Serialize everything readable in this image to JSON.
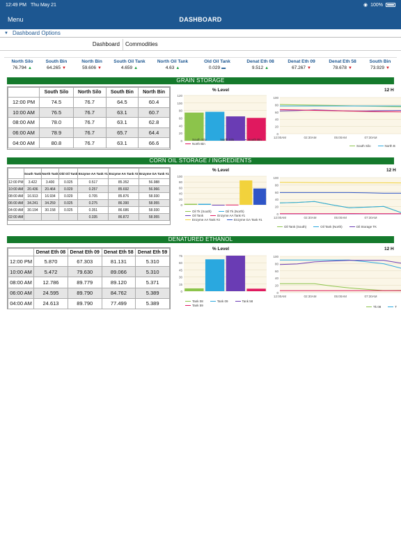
{
  "status_bar": {
    "time": "12:49 PM",
    "date": "Thu May 21",
    "battery": "100%"
  },
  "nav": {
    "menu_label": "Menu",
    "title": "DASHBOARD"
  },
  "dashboard_options_label": "Dashboard Options",
  "tabs": [
    {
      "label": "Dashboard"
    },
    {
      "label": "Commodities"
    }
  ],
  "tickers": [
    {
      "name": "North Silo",
      "value": "76.794",
      "trend": "up"
    },
    {
      "name": "South Bin",
      "value": "64.265",
      "trend": "down"
    },
    {
      "name": "North Bin",
      "value": "59.606",
      "trend": "down"
    },
    {
      "name": "South Oil Tank",
      "value": "4.659",
      "trend": "up"
    },
    {
      "name": "North Oil Tank",
      "value": "4.63",
      "trend": "up"
    },
    {
      "name": "Old Oil Tank",
      "value": "0.029",
      "trend": "flat"
    },
    {
      "name": "Denat Eth 08",
      "value": "9.512",
      "trend": "up"
    },
    {
      "name": "Denat Eth 09",
      "value": "67.267",
      "trend": "down"
    },
    {
      "name": "Denat Eth 58",
      "value": "78.678",
      "trend": "down"
    },
    {
      "name": "South Bin",
      "value": "73.929",
      "trend": "down"
    }
  ],
  "colors": {
    "nav": "#1d5791",
    "section": "#157a2c",
    "up": "#15a03b",
    "down": "#d2151f"
  },
  "sections": [
    {
      "title": "GRAIN STORAGE",
      "table": {
        "headers": [
          "",
          "South Silo",
          "North Silo",
          "South Bin",
          "North Bin"
        ],
        "rows": [
          [
            "12:00 PM",
            "74.5",
            "76.7",
            "64.5",
            "60.4"
          ],
          [
            "10:00 AM",
            "76.5",
            "76.7",
            "63.1",
            "60.7"
          ],
          [
            "08:00 AM",
            "78.0",
            "76.7",
            "63.1",
            "62.8"
          ],
          [
            "06:00 AM",
            "78.9",
            "76.7",
            "65.7",
            "64.4"
          ],
          [
            "04:00 AM",
            "80.8",
            "76.7",
            "63.1",
            "66.6"
          ]
        ]
      },
      "bar_chart": {
        "title": "% Level",
        "y_ticks": [
          "0",
          "20",
          "40",
          "60",
          "80",
          "100",
          "120"
        ],
        "ymax": 120,
        "bars": [
          {
            "name": "South Silo",
            "value": 74.5,
            "color": "#8cc44b"
          },
          {
            "name": "North Silo",
            "value": 76.7,
            "color": "#2aa8df"
          },
          {
            "name": "South Bin",
            "value": 64.5,
            "color": "#6a3cb4"
          },
          {
            "name": "North Bin",
            "value": 60.4,
            "color": "#e0195f"
          }
        ]
      },
      "line_chart": {
        "title": "12 H",
        "y_ticks": [
          "0",
          "20",
          "40",
          "60",
          "80",
          "100"
        ],
        "ymax": 100,
        "x_ticks": [
          "12:00AM",
          "02:30AM",
          "05:00AM",
          "07:30AM"
        ],
        "series": [
          {
            "name": "South Silo",
            "color": "#8cc44b",
            "values": [
              80.8,
              79.6,
              78.9,
              78.0,
              77.2,
              76.5,
              75.5,
              74.5
            ]
          },
          {
            "name": "North B",
            "color": "#2aa8df",
            "values": [
              76.7,
              76.7,
              76.7,
              76.7,
              76.7,
              76.7,
              76.7,
              76.7
            ]
          },
          {
            "name": "",
            "color": "#6a3cb4",
            "values": [
              63.1,
              64.0,
              65.7,
              64.4,
              63.1,
              63.1,
              63.8,
              64.5
            ]
          },
          {
            "name": "",
            "color": "#e0195f",
            "values": [
              66.6,
              65.5,
              64.4,
              63.6,
              62.8,
              61.7,
              60.7,
              60.4
            ]
          }
        ]
      }
    },
    {
      "title": "CORN OIL STORAGE / INGREDIENTS",
      "table": {
        "headers": [
          "",
          "South Tank",
          "North Tank",
          "Old Oil Tank",
          "Enzyme AA Tank #1",
          "Enzyme AA Tank #2",
          "Enzyme GA Tank #1"
        ],
        "rows": [
          [
            "12:00 PM",
            "3.422",
            "3.400",
            "0.025",
            "0.517",
            "85.352",
            "56.988"
          ],
          [
            "10:00 AM",
            "20.436",
            "20.464",
            "0.029",
            "0.257",
            "85.692",
            "56.966"
          ],
          [
            "08:00 AM",
            "16.913",
            "16.934",
            "0.029",
            "0.705",
            "85.876",
            "58.930"
          ],
          [
            "06:00 AM",
            "34.241",
            "34.259",
            "0.025",
            "0.275",
            "86.390",
            "58.955"
          ],
          [
            "04:00 AM",
            "30.194",
            "30.158",
            "0.025",
            "0.351",
            "86.686",
            "58.930"
          ],
          [
            "02:00 AM",
            "",
            "",
            "",
            "0.335",
            "86.872",
            "58.955"
          ]
        ]
      },
      "bar_chart": {
        "title": "% Level",
        "y_ticks": [
          "0",
          "20",
          "40",
          "60",
          "80",
          "100"
        ],
        "ymax": 100,
        "bars": [
          {
            "name": "Oil Tk (South)",
            "value": 3.4,
            "color": "#8cc44b"
          },
          {
            "name": "Oil Tk (North)",
            "value": 3.4,
            "color": "#2aa8df"
          },
          {
            "name": "Oil Tank",
            "value": 0.03,
            "color": "#6a3cb4"
          },
          {
            "name": "Enzyme AA Tank #1",
            "value": 0.5,
            "color": "#e0195f"
          },
          {
            "name": "Enzyme AA Tank #2",
            "value": 85.4,
            "color": "#f2d23c"
          },
          {
            "name": "Enzyme GA Tank #1",
            "value": 57.0,
            "color": "#2f55c7"
          }
        ],
        "legend": [
          "Oil Tk (South)",
          "Oil Tk (North)",
          "Oil Tank",
          "Enzyme AA Tank #1",
          "Enzyme AA Tank #2",
          "Enzyme GA Tank #1"
        ]
      },
      "line_chart": {
        "title": "12 H",
        "y_ticks": [
          "0",
          "20",
          "40",
          "60",
          "80",
          "100"
        ],
        "ymax": 100,
        "x_ticks": [
          "12:00AM",
          "02:30AM",
          "05:00AM",
          "07:30AM"
        ],
        "series": [
          {
            "name": "Oil Tank (South)",
            "color": "#8cc44b",
            "values": [
              30.2,
              31.5,
              34.2,
              25.0,
              16.9,
              18.5,
              20.4,
              3.4
            ]
          },
          {
            "name": "Oil Tank (North)",
            "color": "#2aa8df",
            "values": [
              30.2,
              31.5,
              34.3,
              25.0,
              16.9,
              18.5,
              20.5,
              3.4
            ]
          },
          {
            "name": "Oil Storage TK",
            "color": "#6a3cb4",
            "values": [
              0.03,
              0.03,
              0.03,
              0.03,
              0.03,
              0.03,
              0.03,
              0.03
            ]
          },
          {
            "name": "",
            "color": "#f2d23c",
            "values": [
              86.9,
              86.7,
              86.4,
              86.1,
              85.9,
              85.8,
              85.7,
              85.4
            ]
          },
          {
            "name": "",
            "color": "#2f55c7",
            "values": [
              58.9,
              58.9,
              58.9,
              58.9,
              58.9,
              58.0,
              57.0,
              57.0
            ]
          },
          {
            "name": "",
            "color": "#e0195f",
            "values": [
              0.3,
              0.3,
              0.3,
              0.5,
              0.7,
              0.5,
              0.3,
              0.5
            ]
          }
        ]
      }
    },
    {
      "title": "DENATURED ETHANOL",
      "table": {
        "headers": [
          "",
          "Denat Eth 08",
          "Denat Eth 09",
          "Denat Eth 58",
          "Denat Eth 59"
        ],
        "rows": [
          [
            "12:00 PM",
            "5.870",
            "67.303",
            "81.131",
            "5.310"
          ],
          [
            "10:00 AM",
            "5.472",
            "79.630",
            "89.066",
            "5.310"
          ],
          [
            "08:00 AM",
            "12.786",
            "89.779",
            "89.120",
            "5.371"
          ],
          [
            "06:00 AM",
            "24.595",
            "89.790",
            "84.762",
            "5.389"
          ],
          [
            "04:00 AM",
            "24.613",
            "89.790",
            "77.499",
            "5.389"
          ]
        ]
      },
      "bar_chart": {
        "title": "% Level",
        "y_ticks": [
          "0",
          "15",
          "30",
          "45",
          "60",
          "75"
        ],
        "ymax": 75,
        "bars": [
          {
            "name": "Tank 08",
            "value": 5.9,
            "color": "#8cc44b"
          },
          {
            "name": "Tank 09",
            "value": 67.3,
            "color": "#2aa8df"
          },
          {
            "name": "Tank 58",
            "value": 81.1,
            "color": "#6a3cb4"
          },
          {
            "name": "Tank 59",
            "value": 5.3,
            "color": "#e0195f"
          }
        ]
      },
      "line_chart": {
        "title": "12 H",
        "y_ticks": [
          "0",
          "20",
          "40",
          "60",
          "80",
          "100"
        ],
        "ymax": 100,
        "x_ticks": [
          "12:00AM",
          "02:30AM",
          "05:00AM",
          "07:30AM"
        ],
        "series": [
          {
            "name": "Tk 08",
            "color": "#8cc44b",
            "values": [
              24.6,
              24.6,
              24.6,
              18.0,
              12.8,
              9.0,
              5.5,
              5.9
            ]
          },
          {
            "name": "T",
            "color": "#2aa8df",
            "values": [
              89.8,
              89.8,
              89.8,
              89.8,
              89.8,
              85.0,
              79.6,
              67.3
            ]
          },
          {
            "name": "",
            "color": "#6a3cb4",
            "values": [
              77.5,
              79.0,
              84.8,
              87.0,
              89.1,
              89.1,
              89.1,
              81.1
            ]
          },
          {
            "name": "",
            "color": "#e0195f",
            "values": [
              5.4,
              5.4,
              5.4,
              5.4,
              5.4,
              5.3,
              5.3,
              5.3
            ]
          }
        ]
      }
    }
  ]
}
